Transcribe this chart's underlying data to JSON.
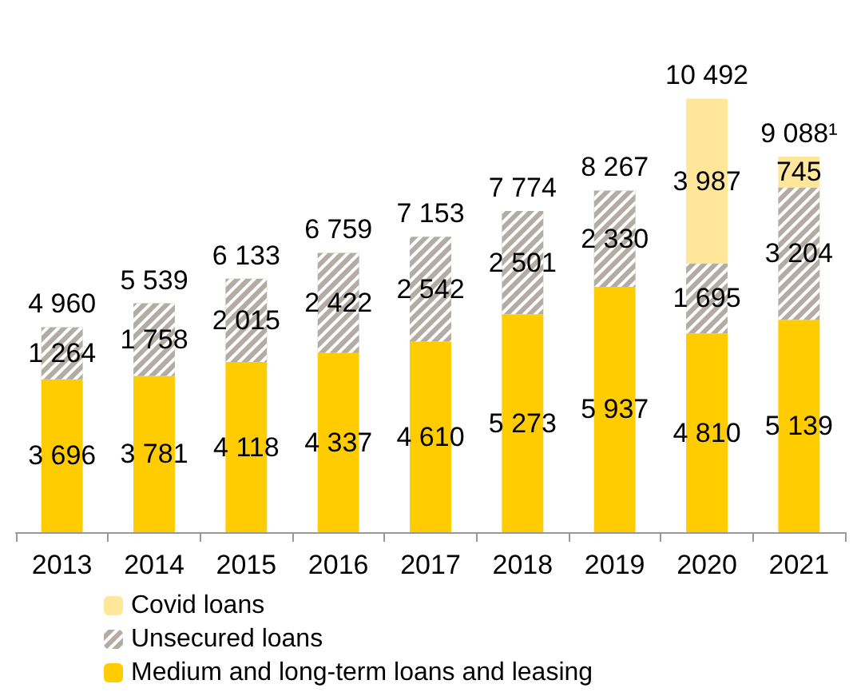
{
  "chart_data": {
    "type": "bar",
    "stacked": true,
    "legend": "bottom",
    "categories": [
      "2013",
      "2014",
      "2015",
      "2016",
      "2017",
      "2018",
      "2019",
      "2020",
      "2021"
    ],
    "series": [
      {
        "name": "Medium and long-term loans and leasing",
        "color": "#ffcc00",
        "values": [
          3696,
          3781,
          4118,
          4337,
          4610,
          5273,
          5937,
          4810,
          5139
        ],
        "value_labels": [
          "3 696",
          "3 781",
          "4 118",
          "4 337",
          "4 610",
          "5 273",
          "5 937",
          "4 810",
          "5 139"
        ]
      },
      {
        "name": "Unsecured loans",
        "color": "#b3aca4",
        "values": [
          1264,
          1758,
          2015,
          2422,
          2542,
          2501,
          2330,
          1695,
          3204
        ],
        "value_labels": [
          "1 264",
          "1 758",
          "2 015",
          "2 422",
          "2 542",
          "2 501",
          "2 330",
          "1 695",
          "3 204"
        ]
      },
      {
        "name": "Covid loans",
        "color": "#ffe699",
        "values": [
          null,
          null,
          null,
          null,
          null,
          null,
          null,
          3987,
          745
        ],
        "value_labels": [
          null,
          null,
          null,
          null,
          null,
          null,
          null,
          "3 987",
          "745"
        ]
      }
    ],
    "totals": [
      "4 960",
      "5 539",
      "6 133",
      "6 759",
      "7 153",
      "7 774",
      "8 267",
      "10 492",
      "9 088¹"
    ]
  }
}
